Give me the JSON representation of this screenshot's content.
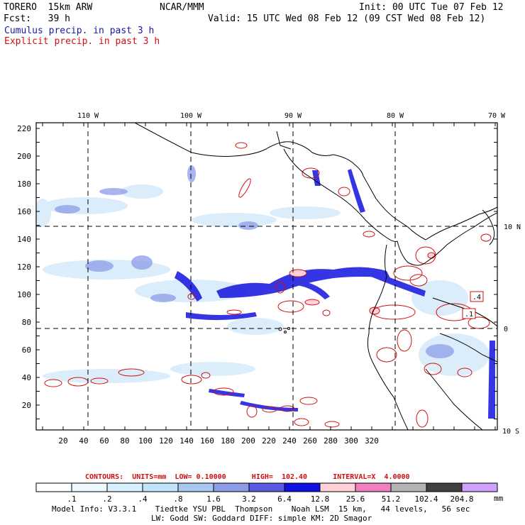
{
  "header": {
    "model": "TORERO  15km ARW",
    "org": "NCAR/MMM",
    "init": "Init: 00 UTC Tue 07 Feb 12",
    "fcst": "Fcst:   39 h",
    "valid": "Valid: 15 UTC Wed 08 Feb 12 (09 CST Wed 08 Feb 12)",
    "legend_cumulus": "Cumulus precip. in past 3 h",
    "legend_explicit": "Explicit precip. in past 3 h"
  },
  "axes": {
    "top_lon": [
      "110 W",
      "100 W",
      "90 W",
      "80 W",
      "70 W"
    ],
    "right_lat": [
      "10 N",
      "0",
      "10 S"
    ],
    "left_y": [
      "220",
      "200",
      "180",
      "160",
      "140",
      "120",
      "100",
      "80",
      "60",
      "40",
      "20"
    ],
    "bottom_x": [
      "20",
      "40",
      "60",
      "80",
      "100",
      "120",
      "140",
      "160",
      "180",
      "200",
      "220",
      "240",
      "260",
      "280",
      "300",
      "320"
    ]
  },
  "labels": {
    "box_a": ".4",
    "box_b": ".1"
  },
  "contours": {
    "text": "CONTOURS:  UNITS=mm  LOW= 0.10000      HIGH=  102.40      INTERVAL=X  4.0000"
  },
  "colorbar": {
    "colors": [
      "#ffffff",
      "#eef8ff",
      "#d8f0ff",
      "#c0e4fa",
      "#a8c8f0",
      "#8c9ce8",
      "#5a5ae0",
      "#1010e0",
      "#ffd0d8",
      "#f080c0",
      "#b4b4b4",
      "#404040",
      "#d0a0ff"
    ],
    "labels": [
      ".1",
      ".2",
      ".4",
      ".8",
      "1.6",
      "3.2",
      "6.4",
      "12.8",
      "25.6",
      "51.2",
      "102.4",
      "204.8"
    ],
    "units": "mm"
  },
  "footer": {
    "line1": "Model Info: V3.3.1    Tiedtke YSU PBL  Thompson    Noah LSM  15 km,   44 levels,   56 sec",
    "line2": "LW: Godd SW: Goddard DIFF: simple KM: 2D Smagor"
  }
}
